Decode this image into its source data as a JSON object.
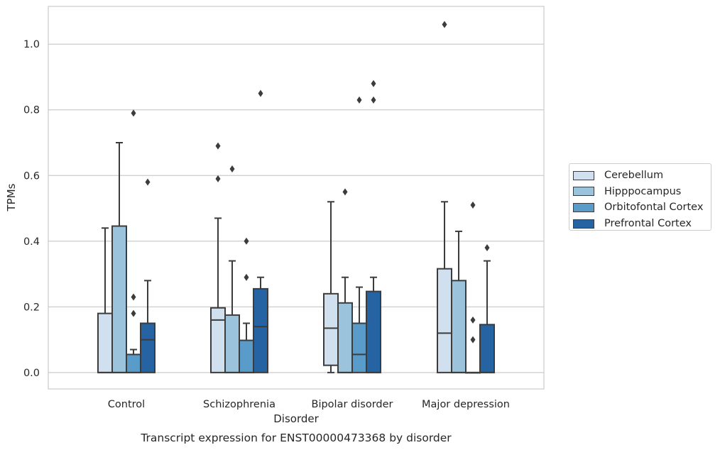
{
  "chart_data": {
    "type": "box",
    "title": "Transcript expression for ENST00000473368 by disorder",
    "xlabel": "Disorder",
    "ylabel": "TPMs",
    "ylim": [
      -0.05,
      1.115
    ],
    "yticks": [
      "0.0",
      "0.2",
      "0.4",
      "0.6",
      "0.8",
      "1.0"
    ],
    "ytick_values": [
      0,
      0.2,
      0.4,
      0.6,
      0.8,
      1.0
    ],
    "categories": [
      "Control",
      "Schizophrenia",
      "Bipolar disorder",
      "Major depression"
    ],
    "grid": "horizontal",
    "legend_position": "right",
    "series": [
      {
        "name": "Cerebellum",
        "color": "#d0e0ef",
        "boxes": [
          {
            "q1": 0.0,
            "median": 0.0,
            "q3": 0.18,
            "whisker_low": 0.0,
            "whisker_high": 0.44,
            "outliers": []
          },
          {
            "q1": 0.0,
            "median": 0.16,
            "q3": 0.197,
            "whisker_low": 0.0,
            "whisker_high": 0.47,
            "outliers": [
              0.59,
              0.69
            ]
          },
          {
            "q1": 0.022,
            "median": 0.135,
            "q3": 0.24,
            "whisker_low": 0.0,
            "whisker_high": 0.52,
            "outliers": []
          },
          {
            "q1": 0.0,
            "median": 0.12,
            "q3": 0.316,
            "whisker_low": 0.0,
            "whisker_high": 0.52,
            "outliers": [
              1.06
            ]
          }
        ]
      },
      {
        "name": "Hipppocampus",
        "color": "#9bc4dc",
        "boxes": [
          {
            "q1": 0.0,
            "median": 0.0,
            "q3": 0.446,
            "whisker_low": 0.0,
            "whisker_high": 0.7,
            "outliers": []
          },
          {
            "q1": 0.0,
            "median": 0.0,
            "q3": 0.175,
            "whisker_low": 0.0,
            "whisker_high": 0.34,
            "outliers": [
              0.62
            ]
          },
          {
            "q1": 0.0,
            "median": 0.0,
            "q3": 0.212,
            "whisker_low": 0.0,
            "whisker_high": 0.29,
            "outliers": [
              0.55
            ]
          },
          {
            "q1": 0.0,
            "median": 0.0,
            "q3": 0.28,
            "whisker_low": 0.0,
            "whisker_high": 0.43,
            "outliers": []
          }
        ]
      },
      {
        "name": "Orbitofontal Cortex",
        "color": "#5a9cc9",
        "boxes": [
          {
            "q1": 0.0,
            "median": 0.0,
            "q3": 0.055,
            "whisker_low": 0.0,
            "whisker_high": 0.07,
            "outliers": [
              0.18,
              0.23,
              0.79
            ]
          },
          {
            "q1": 0.0,
            "median": 0.0,
            "q3": 0.098,
            "whisker_low": 0.0,
            "whisker_high": 0.15,
            "outliers": [
              0.29,
              0.4
            ]
          },
          {
            "q1": 0.0,
            "median": 0.055,
            "q3": 0.15,
            "whisker_low": 0.0,
            "whisker_high": 0.26,
            "outliers": [
              0.83
            ]
          },
          {
            "q1": 0.0,
            "median": 0.0,
            "q3": 0.0,
            "whisker_low": 0.0,
            "whisker_high": 0.0,
            "outliers": [
              0.1,
              0.16,
              0.51
            ]
          }
        ]
      },
      {
        "name": "Prefrontal Cortex",
        "color": "#2563a2",
        "boxes": [
          {
            "q1": 0.0,
            "median": 0.1,
            "q3": 0.15,
            "whisker_low": 0.0,
            "whisker_high": 0.28,
            "outliers": [
              0.58
            ]
          },
          {
            "q1": 0.0,
            "median": 0.14,
            "q3": 0.255,
            "whisker_low": 0.0,
            "whisker_high": 0.29,
            "outliers": [
              0.85
            ]
          },
          {
            "q1": 0.0,
            "median": 0.0,
            "q3": 0.247,
            "whisker_low": 0.0,
            "whisker_high": 0.29,
            "outliers": [
              0.83,
              0.88
            ]
          },
          {
            "q1": 0.0,
            "median": 0.0,
            "q3": 0.146,
            "whisker_low": 0.0,
            "whisker_high": 0.34,
            "outliers": [
              0.38
            ]
          }
        ]
      }
    ]
  }
}
